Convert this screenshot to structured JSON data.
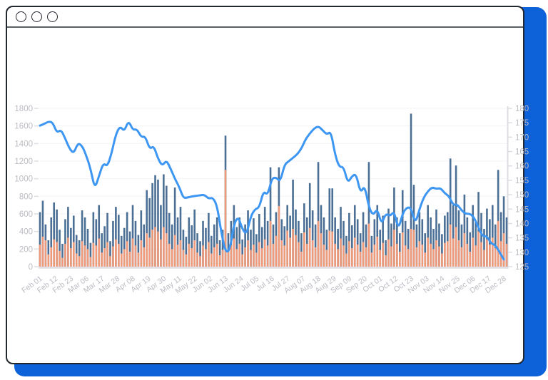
{
  "window": {
    "controls": [
      "circle-icon",
      "circle-icon",
      "circle-icon"
    ]
  },
  "colors": {
    "frame_accent": "#0E62D9",
    "window_border": "#23272E",
    "titlebar_divider": "#5A5E66",
    "bar_dark": "#4C7095",
    "bar_orange": "#EF9A7B",
    "line_blue": "#3D97F2",
    "axis_text": "#BBBCC3",
    "axis_line": "#DDDEE3",
    "grid_line": "#F3F3F7"
  },
  "chart_data": {
    "type": "bar",
    "subtype": "overlapped-bars-with-line",
    "title": "",
    "xlabel": "",
    "ylabel": "",
    "grid": "faint-horizontal",
    "legend": "none",
    "total_days": 332,
    "x_tick_step_days": 11,
    "x_tick_labels": [
      "Feb 01",
      "Feb 12",
      "Feb 23",
      "Mar 06",
      "Mar 17",
      "Mar 28",
      "Apr 08",
      "Apr 19",
      "Apr 30",
      "May 11",
      "May 22",
      "Jun 02",
      "Jun 13",
      "Jun 24",
      "Jul 05",
      "Jul 16",
      "Jul 27",
      "Aug 07",
      "Aug 18",
      "Aug 29",
      "Sep 09",
      "Sep 20",
      "Oct 01",
      "Oct 12",
      "Oct 23",
      "Nov 03",
      "Nov 14",
      "Nov 25",
      "Dec 06",
      "Dec 17",
      "Dec 28"
    ],
    "left_axis": {
      "min": 0,
      "max": 1800,
      "step": 200,
      "tick_labels": [
        "0",
        "200",
        "400",
        "600",
        "800",
        "1000",
        "1200",
        "1400",
        "1600",
        "1800"
      ]
    },
    "right_axis": {
      "min": 125,
      "max": 180,
      "step": 5,
      "tick_labels": [
        "125",
        "130",
        "135",
        "140",
        "145",
        "150",
        "155",
        "160",
        "165",
        "170",
        "175",
        "180"
      ]
    },
    "series": [
      {
        "name": "dark-bars",
        "type": "bar",
        "axis": "left",
        "color": "#4C7095",
        "step_days": 2,
        "values": [
          620,
          750,
          480,
          300,
          560,
          730,
          650,
          420,
          260,
          540,
          680,
          440,
          580,
          360,
          300,
          640,
          560,
          430,
          270,
          620,
          540,
          700,
          380,
          460,
          610,
          290,
          520,
          680,
          590,
          350,
          440,
          620,
          400,
          700,
          520,
          360,
          640,
          480,
          870,
          780,
          950,
          1040,
          990,
          700,
          1050,
          920,
          610,
          480,
          900,
          560,
          680,
          420,
          340,
          560,
          470,
          650,
          380,
          290,
          520,
          440,
          610,
          350,
          480,
          560,
          300,
          420,
          1490,
          380,
          520,
          700,
          450,
          560,
          310,
          480,
          640,
          420,
          550,
          370,
          600,
          450,
          680,
          520,
          1130,
          480,
          620,
          1130,
          540,
          460,
          700,
          580,
          990,
          650,
          520,
          380,
          720,
          560,
          950,
          640,
          480,
          1190,
          700,
          560,
          420,
          890,
          890,
          560,
          430,
          680,
          520,
          350,
          610,
          470,
          700,
          540,
          380,
          620,
          480,
          1190,
          350,
          540,
          700,
          420,
          580,
          300,
          660,
          490,
          900,
          560,
          380,
          870,
          520,
          430,
          1740,
          930,
          480,
          620,
          540,
          380,
          700,
          560,
          430,
          650,
          490,
          370,
          580,
          620,
          1230,
          700,
          1150,
          640,
          480,
          820,
          560,
          390,
          700,
          520,
          850,
          610,
          430,
          660,
          540,
          700,
          480,
          1100,
          620,
          800,
          560
        ]
      },
      {
        "name": "orange-bars",
        "type": "bar",
        "axis": "left",
        "color": "#EF9A7B",
        "step_days": 2,
        "values": [
          250,
          340,
          300,
          140,
          220,
          310,
          280,
          180,
          100,
          260,
          330,
          210,
          280,
          150,
          120,
          290,
          240,
          200,
          110,
          270,
          240,
          320,
          160,
          210,
          280,
          120,
          230,
          310,
          260,
          150,
          200,
          290,
          170,
          320,
          240,
          160,
          300,
          220,
          380,
          330,
          420,
          450,
          400,
          310,
          450,
          380,
          260,
          200,
          360,
          250,
          300,
          190,
          140,
          260,
          210,
          300,
          160,
          120,
          240,
          200,
          280,
          150,
          220,
          260,
          130,
          190,
          1100,
          170,
          240,
          320,
          200,
          260,
          140,
          220,
          300,
          190,
          250,
          160,
          280,
          210,
          310,
          240,
          520,
          260,
          350,
          690,
          300,
          240,
          410,
          330,
          430,
          360,
          280,
          170,
          390,
          260,
          440,
          300,
          220,
          520,
          380,
          250,
          190,
          410,
          400,
          260,
          200,
          320,
          240,
          150,
          290,
          210,
          330,
          250,
          170,
          280,
          220,
          490,
          160,
          250,
          340,
          190,
          270,
          130,
          310,
          230,
          420,
          260,
          170,
          390,
          240,
          200,
          430,
          420,
          220,
          290,
          250,
          160,
          330,
          260,
          200,
          300,
          230,
          150,
          270,
          290,
          480,
          320,
          450,
          300,
          220,
          380,
          260,
          170,
          330,
          240,
          400,
          280,
          190,
          310,
          250,
          330,
          210,
          520,
          290,
          380,
          260
        ]
      },
      {
        "name": "blue-line",
        "type": "line",
        "axis": "right",
        "color": "#3D97F2",
        "step_days": 3,
        "values": [
          174,
          174.6,
          175.4,
          175.2,
          171.5,
          172.6,
          169.5,
          166,
          164.3,
          168,
          167,
          163.5,
          159,
          152,
          156.5,
          161,
          159.8,
          164.5,
          171,
          173.8,
          172,
          175.8,
          172.5,
          172.8,
          170,
          170.3,
          165.8,
          167,
          162.5,
          160,
          162,
          159,
          155.5,
          152.8,
          148.8,
          149,
          149.4,
          149.6,
          149.8,
          150,
          148.6,
          149,
          146.2,
          136.8,
          130.1,
          130.5,
          139.7,
          142.5,
          138,
          136.2,
          142.5,
          145,
          145.5,
          151.3,
          149.8,
          155.7,
          156,
          154.5,
          160.5,
          161.6,
          162.8,
          164,
          166,
          169.3,
          171.3,
          173,
          173.8,
          172.5,
          170.9,
          172,
          163.8,
          159.5,
          159.8,
          154,
          156.5,
          157.2,
          150.5,
          153.3,
          145.6,
          142.8,
          145.2,
          139.6,
          143.5,
          142.5,
          144.3,
          137.8,
          143.5,
          145.6,
          145.5,
          139.8,
          145,
          149,
          151.2,
          152.6,
          152,
          152.3,
          150.5,
          149.5,
          146.4,
          146.6,
          144.5,
          143.3,
          143.4,
          142,
          138.5,
          135.5,
          135.6,
          133,
          132.5,
          130,
          127.5
        ]
      }
    ]
  }
}
